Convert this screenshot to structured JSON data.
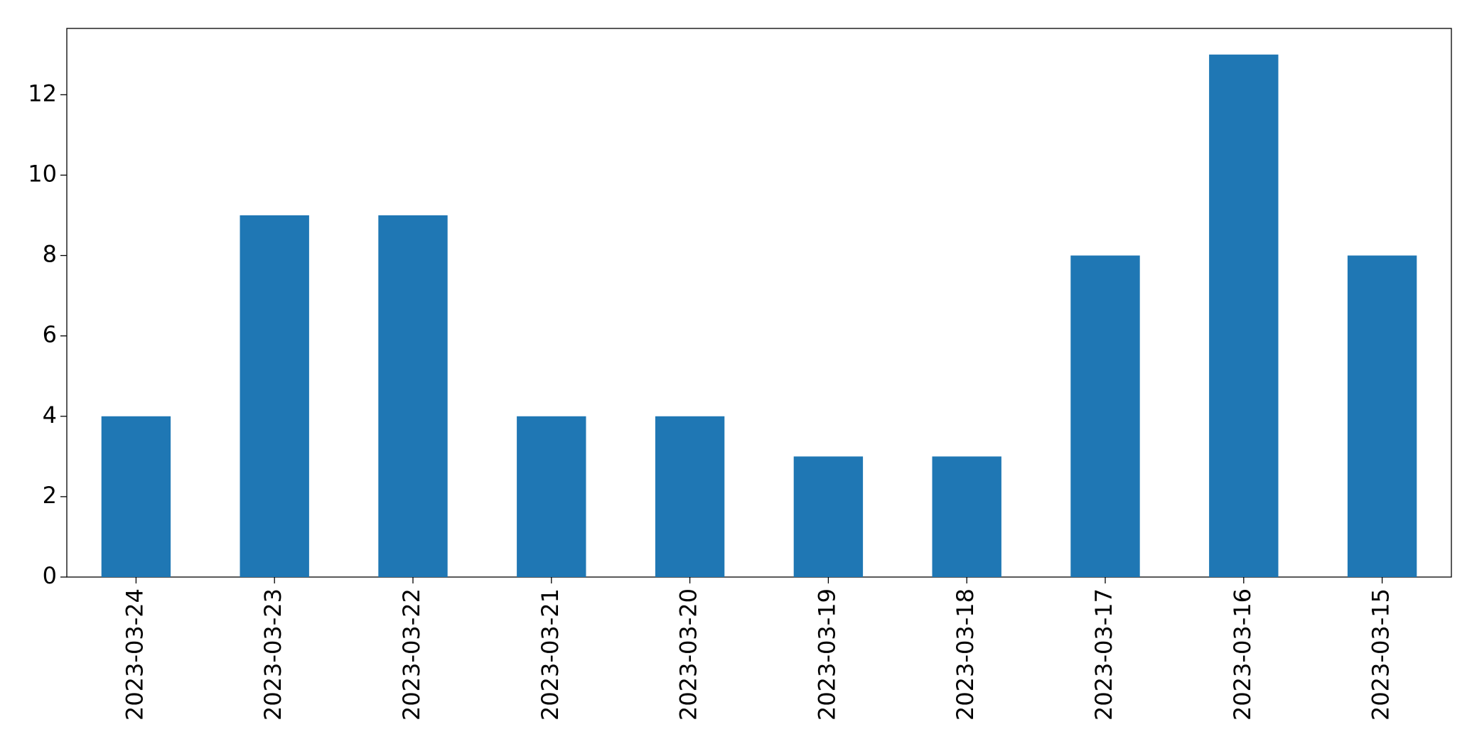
{
  "chart_data": {
    "type": "bar",
    "categories": [
      "2023-03-24",
      "2023-03-23",
      "2023-03-22",
      "2023-03-21",
      "2023-03-20",
      "2023-03-19",
      "2023-03-18",
      "2023-03-17",
      "2023-03-16",
      "2023-03-15"
    ],
    "values": [
      4,
      9,
      9,
      4,
      4,
      3,
      3,
      8,
      13,
      8
    ],
    "color": "#1f77b4",
    "ylim": [
      0,
      13.65
    ],
    "yticks": [
      0,
      2,
      4,
      6,
      8,
      10,
      12
    ],
    "grid": false
  }
}
